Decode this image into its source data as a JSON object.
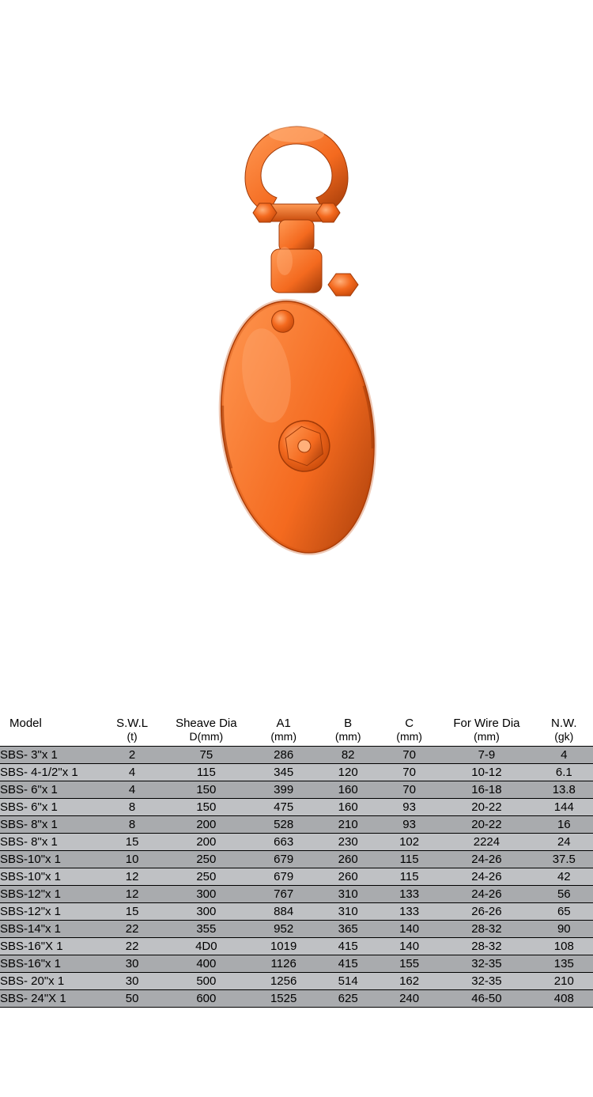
{
  "product_image": {
    "type": "snatch-block-pulley",
    "main_color": "#f46a1f",
    "highlight_color": "#ff9a55",
    "shadow_color": "#c84a0a",
    "dark_shadow": "#a03a08",
    "background": "#ffffff"
  },
  "table": {
    "header_bg": "#ffffff",
    "row_odd_bg": "#a9abae",
    "row_even_bg": "#bfc1c4",
    "border_color": "#000000",
    "text_color": "#000000",
    "font_size_header": 15,
    "font_size_cell": 15,
    "columns": [
      {
        "label": "Model",
        "sub": "",
        "width": "16%",
        "align": "left"
      },
      {
        "label": "S.W.L",
        "sub": "(t)",
        "width": "9%",
        "align": "center"
      },
      {
        "label": "Sheave Dia",
        "sub": "D(mm)",
        "width": "14%",
        "align": "center"
      },
      {
        "label": "A1",
        "sub": "(mm)",
        "width": "10%",
        "align": "center"
      },
      {
        "label": "B",
        "sub": "(mm)",
        "width": "10%",
        "align": "center"
      },
      {
        "label": "C",
        "sub": "(mm)",
        "width": "9%",
        "align": "center"
      },
      {
        "label": "For Wire Dia",
        "sub": "(mm)",
        "width": "15%",
        "align": "center"
      },
      {
        "label": "N.W.",
        "sub": "(gk)",
        "width": "9%",
        "align": "center"
      }
    ],
    "rows": [
      [
        "SBS- 3\"x 1",
        "2",
        "75",
        "286",
        "82",
        "70",
        "7-9",
        "4"
      ],
      [
        "SBS- 4-1/2\"x 1",
        "4",
        "115",
        "345",
        "120",
        "70",
        "10-12",
        "6.1"
      ],
      [
        "SBS- 6\"x 1",
        "4",
        "150",
        "399",
        "160",
        "70",
        "16-18",
        "13.8"
      ],
      [
        "SBS- 6\"x 1",
        "8",
        "150",
        "475",
        "160",
        "93",
        "20-22",
        "144"
      ],
      [
        "SBS- 8\"x 1",
        "8",
        "200",
        "528",
        "210",
        "93",
        "20-22",
        "16"
      ],
      [
        "SBS- 8\"x 1",
        "15",
        "200",
        "663",
        "230",
        "102",
        "2224",
        "24"
      ],
      [
        "SBS-10\"x 1",
        "10",
        "250",
        "679",
        "260",
        "115",
        "24-26",
        "37.5"
      ],
      [
        "SBS-10\"x 1",
        "12",
        "250",
        "679",
        "260",
        "115",
        "24-26",
        "42"
      ],
      [
        "SBS-12\"x 1",
        "12",
        "300",
        "767",
        "310",
        "133",
        "24-26",
        "56"
      ],
      [
        "SBS-12\"x 1",
        "15",
        "300",
        "884",
        "310",
        "133",
        "26-26",
        "65"
      ],
      [
        "SBS-14\"x 1",
        "22",
        "355",
        "952",
        "365",
        "140",
        "28-32",
        "90"
      ],
      [
        "SBS-16\"X 1",
        "22",
        "4D0",
        "1019",
        "415",
        "140",
        "28-32",
        "108"
      ],
      [
        "SBS-16\"x 1",
        "30",
        "400",
        "1126",
        "415",
        "155",
        "32-35",
        "135"
      ],
      [
        "SBS- 20\"x 1",
        "30",
        "500",
        "1256",
        "514",
        "162",
        "32-35",
        "210"
      ],
      [
        "SBS- 24\"X 1",
        "50",
        "600",
        "1525",
        "625",
        "240",
        "46-50",
        "408"
      ]
    ]
  }
}
